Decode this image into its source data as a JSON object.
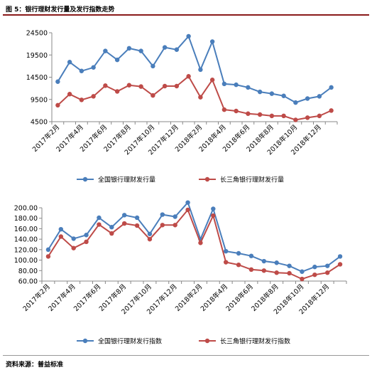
{
  "header": {
    "title": "图 5：银行理财发行量及发行指数走势"
  },
  "footer": {
    "source": "资料来源：普益标准"
  },
  "chart_data": [
    {
      "type": "line",
      "categories": [
        "2017年2月",
        "2017年3月",
        "2017年4月",
        "2017年5月",
        "2017年6月",
        "2017年7月",
        "2017年8月",
        "2017年9月",
        "2017年10月",
        "2017年11月",
        "2017年12月",
        "2018年1月",
        "2018年2月",
        "2018年3月",
        "2018年4月",
        "2018年5月",
        "2018年6月",
        "2018年7月",
        "2018年8月",
        "2018年9月",
        "2018年10月",
        "2018年11月",
        "2018年12月",
        "2019年1月"
      ],
      "xtick_labels": [
        "2017年2月",
        "2017年4月",
        "2017年6月",
        "2017年8月",
        "2017年10月",
        "2017年12月",
        "2018年2月",
        "2018年4月",
        "2018年6月",
        "2018年8月",
        "2018年10月",
        "2018年12月"
      ],
      "ylim": [
        4500,
        24500
      ],
      "yticks": [
        "4500",
        "9500",
        "14500",
        "19500",
        "24500"
      ],
      "grid": false,
      "legend_position": "bottom",
      "series": [
        {
          "name": "全国银行理财发行量",
          "color": "#4a7ebb",
          "values": [
            13500,
            17900,
            15900,
            16700,
            20400,
            18400,
            21000,
            20400,
            17000,
            21200,
            20700,
            23700,
            16200,
            22500,
            13000,
            12800,
            12200,
            11200,
            10800,
            10300,
            8800,
            9700,
            10200,
            12200
          ]
        },
        {
          "name": "长三角银行理财发行量",
          "color": "#be4b48",
          "values": [
            8200,
            10700,
            9400,
            10200,
            12600,
            11300,
            12700,
            12400,
            10400,
            12500,
            12500,
            14700,
            10000,
            13900,
            7200,
            6900,
            6300,
            6100,
            5800,
            5800,
            4900,
            5400,
            5800,
            7000
          ]
        }
      ]
    },
    {
      "type": "line",
      "categories": [
        "2017年2月",
        "2017年3月",
        "2017年4月",
        "2017年5月",
        "2017年6月",
        "2017年7月",
        "2017年8月",
        "2017年9月",
        "2017年10月",
        "2017年11月",
        "2017年12月",
        "2018年1月",
        "2018年2月",
        "2018年3月",
        "2018年4月",
        "2018年5月",
        "2018年6月",
        "2018年7月",
        "2018年8月",
        "2018年9月",
        "2018年10月",
        "2018年11月",
        "2018年12月",
        "2019年1月"
      ],
      "xtick_labels": [
        "2017年2月",
        "2017年4月",
        "2017年6月",
        "2017年8月",
        "2017年10月",
        "2017年12月",
        "2018年2月",
        "2018年4月",
        "2018年6月",
        "2018年8月",
        "2018年10月",
        "2018年12月"
      ],
      "ylim": [
        60,
        200
      ],
      "yticks": [
        "60.00",
        "80.00",
        "100.00",
        "120.00",
        "140.00",
        "160.00",
        "180.00",
        "200.00"
      ],
      "grid": false,
      "legend_position": "bottom",
      "series": [
        {
          "name": "全国银行理财发行指数",
          "color": "#4a7ebb",
          "values": [
            120,
            159,
            141,
            148,
            181,
            163,
            186,
            181,
            150,
            187,
            183,
            210,
            140,
            198,
            117,
            113,
            108,
            98,
            95,
            89,
            78,
            87,
            89,
            107
          ]
        },
        {
          "name": "长三角银行理财发行指数",
          "color": "#be4b48",
          "values": [
            107,
            145,
            123,
            135,
            168,
            151,
            170,
            166,
            140,
            167,
            167,
            196,
            133,
            185,
            96,
            91,
            82,
            80,
            76,
            75,
            64,
            72,
            76,
            92
          ]
        }
      ]
    }
  ]
}
